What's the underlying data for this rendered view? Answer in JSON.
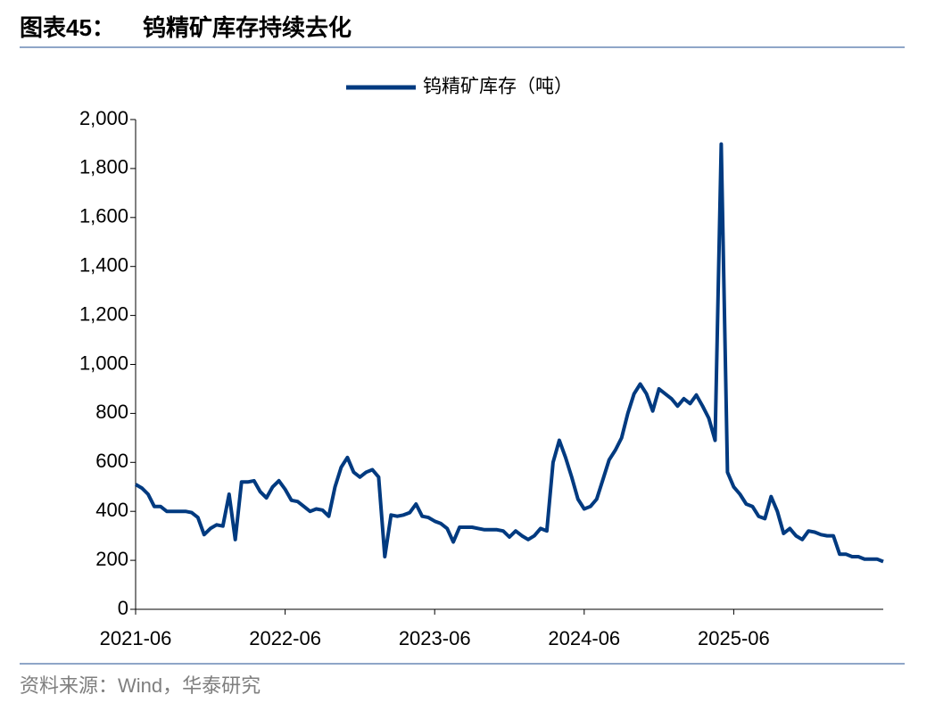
{
  "chart_data": {
    "type": "line",
    "label": "图表45：",
    "title": "钨精矿库存持续去化",
    "source": "资料来源：Wind，华泰研究",
    "categories": [
      "2021-06",
      null,
      null,
      null,
      null,
      null,
      null,
      null,
      null,
      null,
      null,
      null,
      null,
      null,
      null,
      null,
      null,
      null,
      null,
      null,
      null,
      null,
      null,
      null,
      "2022-06",
      null,
      null,
      null,
      null,
      null,
      null,
      null,
      null,
      null,
      null,
      null,
      null,
      null,
      null,
      null,
      null,
      null,
      null,
      null,
      null,
      null,
      null,
      null,
      "2023-06",
      null,
      null,
      null,
      null,
      null,
      null,
      null,
      null,
      null,
      null,
      null,
      null,
      null,
      null,
      null,
      null,
      null,
      null,
      null,
      null,
      null,
      null,
      null,
      "2024-06",
      null,
      null,
      null,
      null,
      null,
      null,
      null,
      null,
      null,
      null,
      null,
      null,
      null,
      null,
      null,
      null,
      null,
      null,
      null,
      null,
      null,
      null,
      null,
      "2025-06",
      null,
      null,
      null,
      null,
      null,
      null,
      null,
      null,
      null,
      null,
      null,
      null,
      null,
      null,
      null,
      null,
      null,
      null,
      null,
      null,
      null,
      null,
      null,
      null
    ],
    "series": [
      {
        "name": "钨精矿库存（吨）",
        "color": "#003a80",
        "values": [
          510,
          495,
          470,
          420,
          420,
          400,
          400,
          400,
          400,
          395,
          375,
          305,
          330,
          345,
          340,
          470,
          285,
          520,
          520,
          525,
          480,
          455,
          500,
          525,
          490,
          445,
          440,
          420,
          400,
          410,
          405,
          380,
          500,
          580,
          620,
          560,
          540,
          560,
          570,
          540,
          215,
          385,
          380,
          385,
          395,
          430,
          380,
          375,
          360,
          350,
          330,
          275,
          335,
          335,
          335,
          330,
          325,
          325,
          325,
          320,
          295,
          320,
          300,
          285,
          300,
          330,
          320,
          600,
          690,
          620,
          540,
          450,
          410,
          420,
          450,
          530,
          610,
          650,
          700,
          800,
          880,
          920,
          880,
          810,
          900,
          880,
          860,
          830,
          860,
          840,
          875,
          830,
          780,
          690,
          1900,
          560,
          500,
          470,
          430,
          420,
          380,
          370,
          460,
          400,
          310,
          330,
          300,
          285,
          320,
          315,
          305,
          300,
          300,
          225,
          225,
          215,
          215,
          205,
          205,
          205,
          195
        ]
      }
    ],
    "ylim": [
      0,
      2000
    ],
    "yticks": [
      0,
      200,
      400,
      600,
      800,
      {
        "value": 1000,
        "label": "1,000"
      },
      {
        "value": 1200,
        "label": "1,200"
      },
      {
        "value": 1400,
        "label": "1,400"
      },
      {
        "value": 1600,
        "label": "1,600"
      },
      {
        "value": 1800,
        "label": "1,800"
      },
      {
        "value": 2000,
        "label": "2,000"
      }
    ],
    "legend": "top"
  }
}
